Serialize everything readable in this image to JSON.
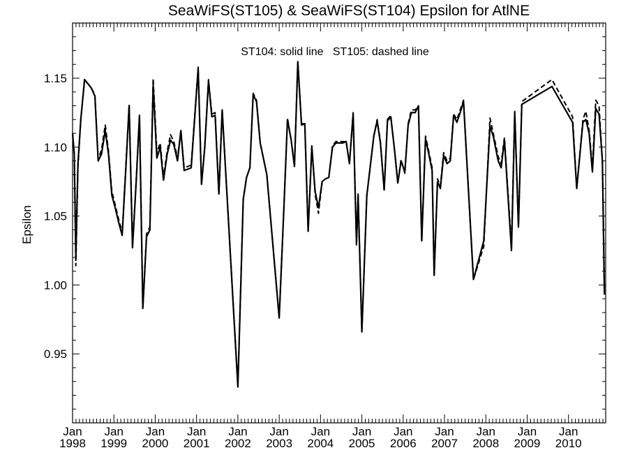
{
  "chart_data": {
    "type": "line",
    "title": "SeaWiFS(ST105) & SeaWiFS(ST104)  Epsilon for AtlNE",
    "ylabel": "Epsilon",
    "annotation": "ST104: solid line   ST105: dashed line",
    "x_unit": "years",
    "xlim": [
      1998.0,
      2010.9
    ],
    "ylim": [
      0.9,
      1.19
    ],
    "y_ticks": [
      0.95,
      1.0,
      1.05,
      1.1,
      1.15
    ],
    "y_tick_labels": [
      "0.95",
      "1.00",
      "1.05",
      "1.10",
      "1.15"
    ],
    "x_ticks": [
      1998,
      1999,
      2000,
      2001,
      2002,
      2003,
      2004,
      2005,
      2006,
      2007,
      2008,
      2009,
      2010
    ],
    "x_tick_labels": [
      {
        "month": "Jan",
        "year": "1998"
      },
      {
        "month": "Jan",
        "year": "1999"
      },
      {
        "month": "Jan",
        "year": "2000"
      },
      {
        "month": "Jan",
        "year": "2001"
      },
      {
        "month": "Jan",
        "year": "2002"
      },
      {
        "month": "Jan",
        "year": "2003"
      },
      {
        "month": "Jan",
        "year": "2004"
      },
      {
        "month": "Jan",
        "year": "2005"
      },
      {
        "month": "Jan",
        "year": "2006"
      },
      {
        "month": "Jan",
        "year": "2007"
      },
      {
        "month": "Jan",
        "year": "2008"
      },
      {
        "month": "Jan",
        "year": "2009"
      },
      {
        "month": "Jan",
        "year": "2010"
      }
    ],
    "grid": false,
    "series": [
      {
        "style": "solid",
        "points": [
          [
            1998.0,
            1.11
          ],
          [
            1998.04,
            1.095
          ],
          [
            1998.08,
            1.02
          ],
          [
            1998.13,
            1.088
          ],
          [
            1998.2,
            1.12
          ],
          [
            1998.29,
            1.149
          ],
          [
            1998.37,
            1.146
          ],
          [
            1998.45,
            1.143
          ],
          [
            1998.54,
            1.137
          ],
          [
            1998.62,
            1.09
          ],
          [
            1998.7,
            1.095
          ],
          [
            1998.79,
            1.112
          ],
          [
            1998.87,
            1.095
          ],
          [
            1998.95,
            1.065
          ],
          [
            1999.04,
            1.055
          ],
          [
            1999.12,
            1.045
          ],
          [
            1999.2,
            1.036
          ],
          [
            1999.29,
            1.085
          ],
          [
            1999.37,
            1.13
          ],
          [
            1999.45,
            1.027
          ],
          [
            1999.54,
            1.075
          ],
          [
            1999.62,
            1.123
          ],
          [
            1999.7,
            0.983
          ],
          [
            1999.79,
            1.035
          ],
          [
            1999.87,
            1.04
          ],
          [
            1999.95,
            1.145
          ],
          [
            2000.04,
            1.092
          ],
          [
            2000.12,
            1.1
          ],
          [
            2000.2,
            1.076
          ],
          [
            2000.29,
            1.095
          ],
          [
            2000.37,
            1.105
          ],
          [
            2000.45,
            1.102
          ],
          [
            2000.54,
            1.09
          ],
          [
            2000.62,
            1.112
          ],
          [
            2000.7,
            1.083
          ],
          [
            2000.79,
            1.084
          ],
          [
            2000.87,
            1.085
          ],
          [
            2001.04,
            1.157
          ],
          [
            2001.12,
            1.073
          ],
          [
            2001.2,
            1.1
          ],
          [
            2001.29,
            1.148
          ],
          [
            2001.37,
            1.122
          ],
          [
            2001.45,
            1.123
          ],
          [
            2001.54,
            1.066
          ],
          [
            2001.62,
            1.127
          ],
          [
            2002.0,
            0.926
          ],
          [
            2002.13,
            1.062
          ],
          [
            2002.21,
            1.078
          ],
          [
            2002.29,
            1.085
          ],
          [
            2002.37,
            1.138
          ],
          [
            2002.45,
            1.133
          ],
          [
            2002.54,
            1.103
          ],
          [
            2002.7,
            1.08
          ],
          [
            2003.0,
            0.976
          ],
          [
            2003.12,
            1.06
          ],
          [
            2003.2,
            1.12
          ],
          [
            2003.29,
            1.105
          ],
          [
            2003.37,
            1.086
          ],
          [
            2003.45,
            1.162
          ],
          [
            2003.54,
            1.116
          ],
          [
            2003.62,
            1.117
          ],
          [
            2003.7,
            1.039
          ],
          [
            2003.79,
            1.1
          ],
          [
            2003.87,
            1.068
          ],
          [
            2003.95,
            1.056
          ],
          [
            2004.04,
            1.075
          ],
          [
            2004.12,
            1.077
          ],
          [
            2004.2,
            1.078
          ],
          [
            2004.29,
            1.1
          ],
          [
            2004.37,
            1.103
          ],
          [
            2004.45,
            1.103
          ],
          [
            2004.54,
            1.103
          ],
          [
            2004.62,
            1.104
          ],
          [
            2004.7,
            1.088
          ],
          [
            2004.79,
            1.124
          ],
          [
            2004.87,
            1.03
          ],
          [
            2004.91,
            1.065
          ],
          [
            2005.0,
            0.966
          ],
          [
            2005.12,
            1.065
          ],
          [
            2005.2,
            1.085
          ],
          [
            2005.29,
            1.108
          ],
          [
            2005.37,
            1.119
          ],
          [
            2005.45,
            1.103
          ],
          [
            2005.54,
            1.069
          ],
          [
            2005.62,
            1.119
          ],
          [
            2005.7,
            1.122
          ],
          [
            2005.79,
            1.098
          ],
          [
            2005.87,
            1.074
          ],
          [
            2005.95,
            1.09
          ],
          [
            2006.04,
            1.082
          ],
          [
            2006.12,
            1.116
          ],
          [
            2006.2,
            1.125
          ],
          [
            2006.29,
            1.125
          ],
          [
            2006.37,
            1.13
          ],
          [
            2006.45,
            1.032
          ],
          [
            2006.54,
            1.106
          ],
          [
            2006.62,
            1.095
          ],
          [
            2006.7,
            1.083
          ],
          [
            2006.75,
            1.007
          ],
          [
            2006.83,
            1.075
          ],
          [
            2006.9,
            1.07
          ],
          [
            2006.98,
            1.094
          ],
          [
            2007.06,
            1.088
          ],
          [
            2007.14,
            1.09
          ],
          [
            2007.22,
            1.123
          ],
          [
            2007.3,
            1.118
          ],
          [
            2007.38,
            1.125
          ],
          [
            2007.46,
            1.133
          ],
          [
            2007.54,
            1.09
          ],
          [
            2007.7,
            1.004
          ],
          [
            2007.95,
            1.032
          ],
          [
            2008.1,
            1.115
          ],
          [
            2008.18,
            1.108
          ],
          [
            2008.3,
            1.09
          ],
          [
            2008.37,
            1.085
          ],
          [
            2008.45,
            1.105
          ],
          [
            2008.62,
            1.025
          ],
          [
            2008.7,
            1.125
          ],
          [
            2008.79,
            1.042
          ],
          [
            2008.87,
            1.131
          ],
          [
            2009.6,
            1.144
          ],
          [
            2010.1,
            1.118
          ],
          [
            2010.2,
            1.07
          ],
          [
            2010.35,
            1.118
          ],
          [
            2010.42,
            1.12
          ],
          [
            2010.5,
            1.11
          ],
          [
            2010.58,
            1.082
          ],
          [
            2010.66,
            1.128
          ],
          [
            2010.74,
            1.124
          ],
          [
            2010.82,
            1.09
          ],
          [
            2010.87,
            0.993
          ]
        ]
      },
      {
        "style": "dashed",
        "points": [
          [
            1998.0,
            1.11
          ],
          [
            1998.04,
            1.095
          ],
          [
            1998.08,
            1.014
          ],
          [
            1998.13,
            1.085
          ],
          [
            1998.2,
            1.12
          ],
          [
            1998.29,
            1.149
          ],
          [
            1998.37,
            1.146
          ],
          [
            1998.45,
            1.143
          ],
          [
            1998.54,
            1.138
          ],
          [
            1998.62,
            1.091
          ],
          [
            1998.7,
            1.098
          ],
          [
            1998.79,
            1.116
          ],
          [
            1998.87,
            1.097
          ],
          [
            1998.95,
            1.068
          ],
          [
            1999.04,
            1.057
          ],
          [
            1999.12,
            1.047
          ],
          [
            1999.2,
            1.038
          ],
          [
            1999.29,
            1.087
          ],
          [
            1999.37,
            1.131
          ],
          [
            1999.45,
            1.028
          ],
          [
            1999.54,
            1.076
          ],
          [
            1999.62,
            1.123
          ],
          [
            1999.7,
            0.983
          ],
          [
            1999.79,
            1.037
          ],
          [
            1999.87,
            1.042
          ],
          [
            1999.95,
            1.15
          ],
          [
            2000.04,
            1.096
          ],
          [
            2000.12,
            1.103
          ],
          [
            2000.2,
            1.078
          ],
          [
            2000.29,
            1.097
          ],
          [
            2000.37,
            1.109
          ],
          [
            2000.45,
            1.104
          ],
          [
            2000.54,
            1.092
          ],
          [
            2000.62,
            1.112
          ],
          [
            2000.7,
            1.085
          ],
          [
            2000.79,
            1.086
          ],
          [
            2000.87,
            1.087
          ],
          [
            2001.04,
            1.158
          ],
          [
            2001.12,
            1.073
          ],
          [
            2001.2,
            1.101
          ],
          [
            2001.29,
            1.149
          ],
          [
            2001.37,
            1.124
          ],
          [
            2001.45,
            1.125
          ],
          [
            2001.54,
            1.066
          ],
          [
            2001.62,
            1.127
          ],
          [
            2002.0,
            0.927
          ],
          [
            2002.13,
            1.062
          ],
          [
            2002.21,
            1.078
          ],
          [
            2002.29,
            1.085
          ],
          [
            2002.37,
            1.139
          ],
          [
            2002.45,
            1.134
          ],
          [
            2002.54,
            1.103
          ],
          [
            2002.7,
            1.08
          ],
          [
            2003.0,
            0.976
          ],
          [
            2003.12,
            1.06
          ],
          [
            2003.2,
            1.121
          ],
          [
            2003.29,
            1.105
          ],
          [
            2003.37,
            1.086
          ],
          [
            2003.45,
            1.162
          ],
          [
            2003.54,
            1.117
          ],
          [
            2003.62,
            1.117
          ],
          [
            2003.7,
            1.039
          ],
          [
            2003.79,
            1.101
          ],
          [
            2003.87,
            1.066
          ],
          [
            2003.95,
            1.052
          ],
          [
            2004.04,
            1.075
          ],
          [
            2004.12,
            1.077
          ],
          [
            2004.2,
            1.078
          ],
          [
            2004.29,
            1.101
          ],
          [
            2004.37,
            1.104
          ],
          [
            2004.45,
            1.104
          ],
          [
            2004.54,
            1.104
          ],
          [
            2004.62,
            1.104
          ],
          [
            2004.7,
            1.088
          ],
          [
            2004.79,
            1.125
          ],
          [
            2004.87,
            1.028
          ],
          [
            2004.91,
            1.066
          ],
          [
            2005.0,
            0.966
          ],
          [
            2005.12,
            1.065
          ],
          [
            2005.2,
            1.085
          ],
          [
            2005.29,
            1.108
          ],
          [
            2005.37,
            1.12
          ],
          [
            2005.45,
            1.104
          ],
          [
            2005.54,
            1.068
          ],
          [
            2005.62,
            1.12
          ],
          [
            2005.7,
            1.123
          ],
          [
            2005.79,
            1.098
          ],
          [
            2005.87,
            1.074
          ],
          [
            2005.95,
            1.091
          ],
          [
            2006.04,
            1.081
          ],
          [
            2006.12,
            1.117
          ],
          [
            2006.2,
            1.127
          ],
          [
            2006.29,
            1.127
          ],
          [
            2006.37,
            1.13
          ],
          [
            2006.45,
            1.032
          ],
          [
            2006.54,
            1.108
          ],
          [
            2006.62,
            1.097
          ],
          [
            2006.7,
            1.085
          ],
          [
            2006.75,
            1.007
          ],
          [
            2006.83,
            1.077
          ],
          [
            2006.9,
            1.072
          ],
          [
            2006.98,
            1.096
          ],
          [
            2007.06,
            1.09
          ],
          [
            2007.14,
            1.092
          ],
          [
            2007.22,
            1.124
          ],
          [
            2007.3,
            1.12
          ],
          [
            2007.38,
            1.127
          ],
          [
            2007.46,
            1.134
          ],
          [
            2007.54,
            1.09
          ],
          [
            2007.7,
            1.004
          ],
          [
            2007.95,
            1.028
          ],
          [
            2008.1,
            1.121
          ],
          [
            2008.18,
            1.11
          ],
          [
            2008.3,
            1.093
          ],
          [
            2008.37,
            1.088
          ],
          [
            2008.45,
            1.107
          ],
          [
            2008.62,
            1.028
          ],
          [
            2008.7,
            1.126
          ],
          [
            2008.79,
            1.042
          ],
          [
            2008.87,
            1.133
          ],
          [
            2009.6,
            1.149
          ],
          [
            2010.1,
            1.122
          ],
          [
            2010.2,
            1.07
          ],
          [
            2010.35,
            1.12
          ],
          [
            2010.42,
            1.126
          ],
          [
            2010.5,
            1.112
          ],
          [
            2010.58,
            1.085
          ],
          [
            2010.66,
            1.134
          ],
          [
            2010.74,
            1.13
          ],
          [
            2010.82,
            1.09
          ],
          [
            2010.87,
            0.998
          ]
        ]
      }
    ]
  }
}
